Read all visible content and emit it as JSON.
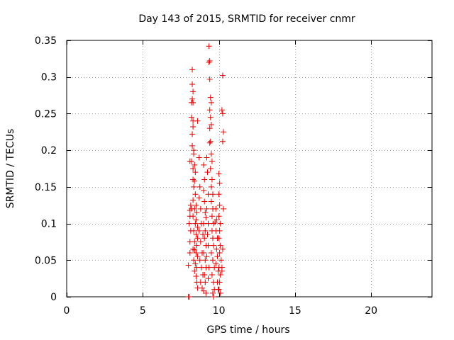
{
  "chart_data": {
    "type": "scatter",
    "title": "Day 143 of 2015, SRMTID for receiver cnmr",
    "xlabel": "GPS time / hours",
    "ylabel": "SRMTID / TECUs",
    "xlim": [
      0,
      24
    ],
    "ylim": [
      0,
      0.35
    ],
    "xticks": [
      0,
      5,
      10,
      15,
      20
    ],
    "xtick_labels": [
      "0",
      "5",
      "10",
      "15",
      "20"
    ],
    "yticks": [
      0,
      0.05,
      0.1,
      0.15,
      0.2,
      0.25,
      0.3,
      0.35
    ],
    "ytick_labels": [
      "0",
      "0.05",
      "0.1",
      "0.15",
      "0.2",
      "0.25",
      "0.3",
      "0.35"
    ],
    "grid": true,
    "marker": "+",
    "color": "#e00000",
    "series": [
      {
        "name": "SRMTID",
        "points": [
          [
            8.0,
            0.0
          ],
          [
            8.05,
            0.0
          ],
          [
            8.0,
            0.043
          ],
          [
            8.1,
            0.06
          ],
          [
            8.1,
            0.075
          ],
          [
            8.15,
            0.09
          ],
          [
            8.05,
            0.1
          ],
          [
            8.1,
            0.11
          ],
          [
            8.2,
            0.12
          ],
          [
            8.15,
            0.125
          ],
          [
            8.1,
            0.118
          ],
          [
            8.2,
            0.185
          ],
          [
            8.1,
            0.185
          ],
          [
            8.25,
            0.31
          ],
          [
            8.25,
            0.29
          ],
          [
            8.3,
            0.28
          ],
          [
            8.25,
            0.27
          ],
          [
            8.2,
            0.265
          ],
          [
            8.3,
            0.265
          ],
          [
            8.2,
            0.245
          ],
          [
            8.3,
            0.24
          ],
          [
            8.3,
            0.232
          ],
          [
            8.25,
            0.222
          ],
          [
            8.35,
            0.2
          ],
          [
            8.35,
            0.195
          ],
          [
            8.4,
            0.18
          ],
          [
            8.3,
            0.175
          ],
          [
            8.45,
            0.17
          ],
          [
            8.3,
            0.16
          ],
          [
            8.4,
            0.158
          ],
          [
            8.35,
            0.15
          ],
          [
            8.45,
            0.14
          ],
          [
            8.3,
            0.132
          ],
          [
            8.5,
            0.125
          ],
          [
            8.4,
            0.12
          ],
          [
            8.55,
            0.115
          ],
          [
            8.3,
            0.11
          ],
          [
            8.5,
            0.105
          ],
          [
            8.45,
            0.1
          ],
          [
            8.6,
            0.095
          ],
          [
            8.35,
            0.09
          ],
          [
            8.5,
            0.085
          ],
          [
            8.6,
            0.08
          ],
          [
            8.4,
            0.075
          ],
          [
            8.55,
            0.07
          ],
          [
            8.3,
            0.065
          ],
          [
            8.5,
            0.06
          ],
          [
            8.6,
            0.055
          ],
          [
            8.35,
            0.05
          ],
          [
            8.45,
            0.045
          ],
          [
            8.55,
            0.04
          ],
          [
            8.4,
            0.035
          ],
          [
            8.5,
            0.028
          ],
          [
            8.55,
            0.02
          ],
          [
            8.6,
            0.012
          ],
          [
            8.6,
            0.24
          ],
          [
            8.7,
            0.19
          ],
          [
            8.75,
            0.15
          ],
          [
            8.8,
            0.12
          ],
          [
            8.85,
            0.1
          ],
          [
            8.7,
            0.09
          ],
          [
            8.8,
            0.075
          ],
          [
            8.9,
            0.06
          ],
          [
            8.75,
            0.05
          ],
          [
            8.85,
            0.04
          ],
          [
            8.95,
            0.03
          ],
          [
            8.8,
            0.02
          ],
          [
            8.9,
            0.012
          ],
          [
            9.0,
            0.18
          ],
          [
            9.05,
            0.16
          ],
          [
            9.0,
            0.145
          ],
          [
            9.05,
            0.13
          ],
          [
            9.1,
            0.115
          ],
          [
            9.0,
            0.1
          ],
          [
            9.1,
            0.09
          ],
          [
            9.05,
            0.08
          ],
          [
            9.15,
            0.07
          ],
          [
            9.0,
            0.06
          ],
          [
            9.1,
            0.05
          ],
          [
            9.15,
            0.04
          ],
          [
            9.05,
            0.03
          ],
          [
            9.1,
            0.02
          ],
          [
            9.0,
            0.008
          ],
          [
            9.15,
            0.005
          ],
          [
            9.2,
            0.19
          ],
          [
            9.25,
            0.17
          ],
          [
            9.2,
            0.12
          ],
          [
            9.3,
            0.1
          ],
          [
            9.25,
            0.085
          ],
          [
            9.3,
            0.07
          ],
          [
            9.2,
            0.055
          ],
          [
            9.35,
            0.04
          ],
          [
            9.3,
            0.025
          ],
          [
            9.35,
            0.342
          ],
          [
            9.4,
            0.322
          ],
          [
            9.35,
            0.32
          ],
          [
            9.4,
            0.297
          ],
          [
            9.45,
            0.272
          ],
          [
            9.5,
            0.265
          ],
          [
            9.4,
            0.255
          ],
          [
            9.45,
            0.245
          ],
          [
            9.5,
            0.235
          ],
          [
            9.4,
            0.23
          ],
          [
            9.45,
            0.212
          ],
          [
            9.4,
            0.21
          ],
          [
            9.5,
            0.195
          ],
          [
            9.55,
            0.185
          ],
          [
            9.45,
            0.175
          ],
          [
            9.55,
            0.16
          ],
          [
            9.5,
            0.15
          ],
          [
            9.6,
            0.14
          ],
          [
            9.5,
            0.13
          ],
          [
            9.6,
            0.12
          ],
          [
            9.55,
            0.11
          ],
          [
            9.65,
            0.1
          ],
          [
            9.55,
            0.09
          ],
          [
            9.6,
            0.08
          ],
          [
            9.65,
            0.07
          ],
          [
            9.5,
            0.06
          ],
          [
            9.6,
            0.05
          ],
          [
            9.7,
            0.04
          ],
          [
            9.55,
            0.03
          ],
          [
            9.65,
            0.02
          ],
          [
            9.7,
            0.01
          ],
          [
            9.6,
            0.005
          ],
          [
            9.65,
            0.0
          ],
          [
            9.8,
            0.12
          ],
          [
            9.85,
            0.105
          ],
          [
            9.8,
            0.09
          ],
          [
            9.9,
            0.08
          ],
          [
            9.85,
            0.065
          ],
          [
            9.9,
            0.055
          ],
          [
            9.8,
            0.045
          ],
          [
            9.95,
            0.035
          ],
          [
            9.9,
            0.02
          ],
          [
            9.95,
            0.01
          ],
          [
            10.0,
            0.168
          ],
          [
            10.05,
            0.155
          ],
          [
            10.0,
            0.14
          ],
          [
            10.05,
            0.125
          ],
          [
            10.0,
            0.11
          ],
          [
            10.1,
            0.1
          ],
          [
            10.05,
            0.09
          ],
          [
            10.0,
            0.08
          ],
          [
            10.1,
            0.07
          ],
          [
            10.05,
            0.06
          ],
          [
            10.15,
            0.05
          ],
          [
            10.0,
            0.04
          ],
          [
            10.1,
            0.03
          ],
          [
            10.05,
            0.02
          ],
          [
            10.0,
            0.01
          ],
          [
            10.1,
            0.005
          ],
          [
            10.25,
            0.302
          ],
          [
            10.2,
            0.255
          ],
          [
            10.25,
            0.25
          ],
          [
            10.3,
            0.225
          ],
          [
            10.25,
            0.212
          ],
          [
            10.3,
            0.12
          ],
          [
            10.25,
            0.065
          ],
          [
            10.2,
            0.04
          ],
          [
            8.25,
            0.206
          ],
          [
            8.4,
            0.064
          ],
          [
            8.7,
            0.135
          ],
          [
            9.3,
            0.14
          ],
          [
            9.15,
            0.108
          ],
          [
            8.95,
            0.085
          ],
          [
            9.75,
            0.102
          ],
          [
            10.2,
            0.035
          ]
        ]
      }
    ]
  }
}
